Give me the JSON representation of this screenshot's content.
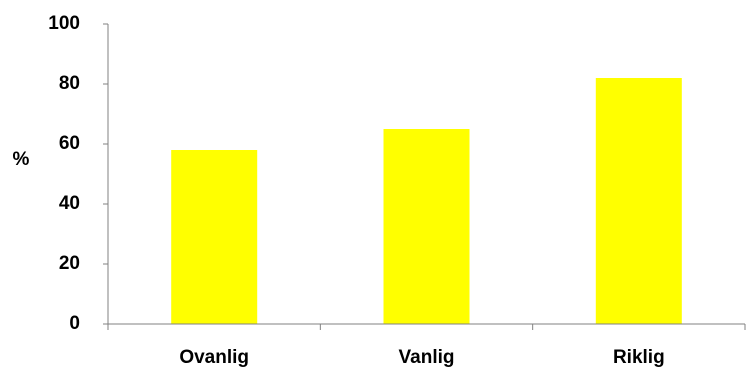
{
  "chart_data": {
    "type": "bar",
    "categories": [
      "Ovanlig",
      "Vanlig",
      "Riklig"
    ],
    "values": [
      58,
      65,
      82
    ],
    "title": "",
    "xlabel": "",
    "ylabel": "%",
    "ylim": [
      0,
      100
    ],
    "yticks": [
      0,
      20,
      40,
      60,
      80,
      100
    ],
    "grid": false,
    "legend": "none",
    "bar_color": "#FFFF00",
    "axis_color": "#808080"
  }
}
